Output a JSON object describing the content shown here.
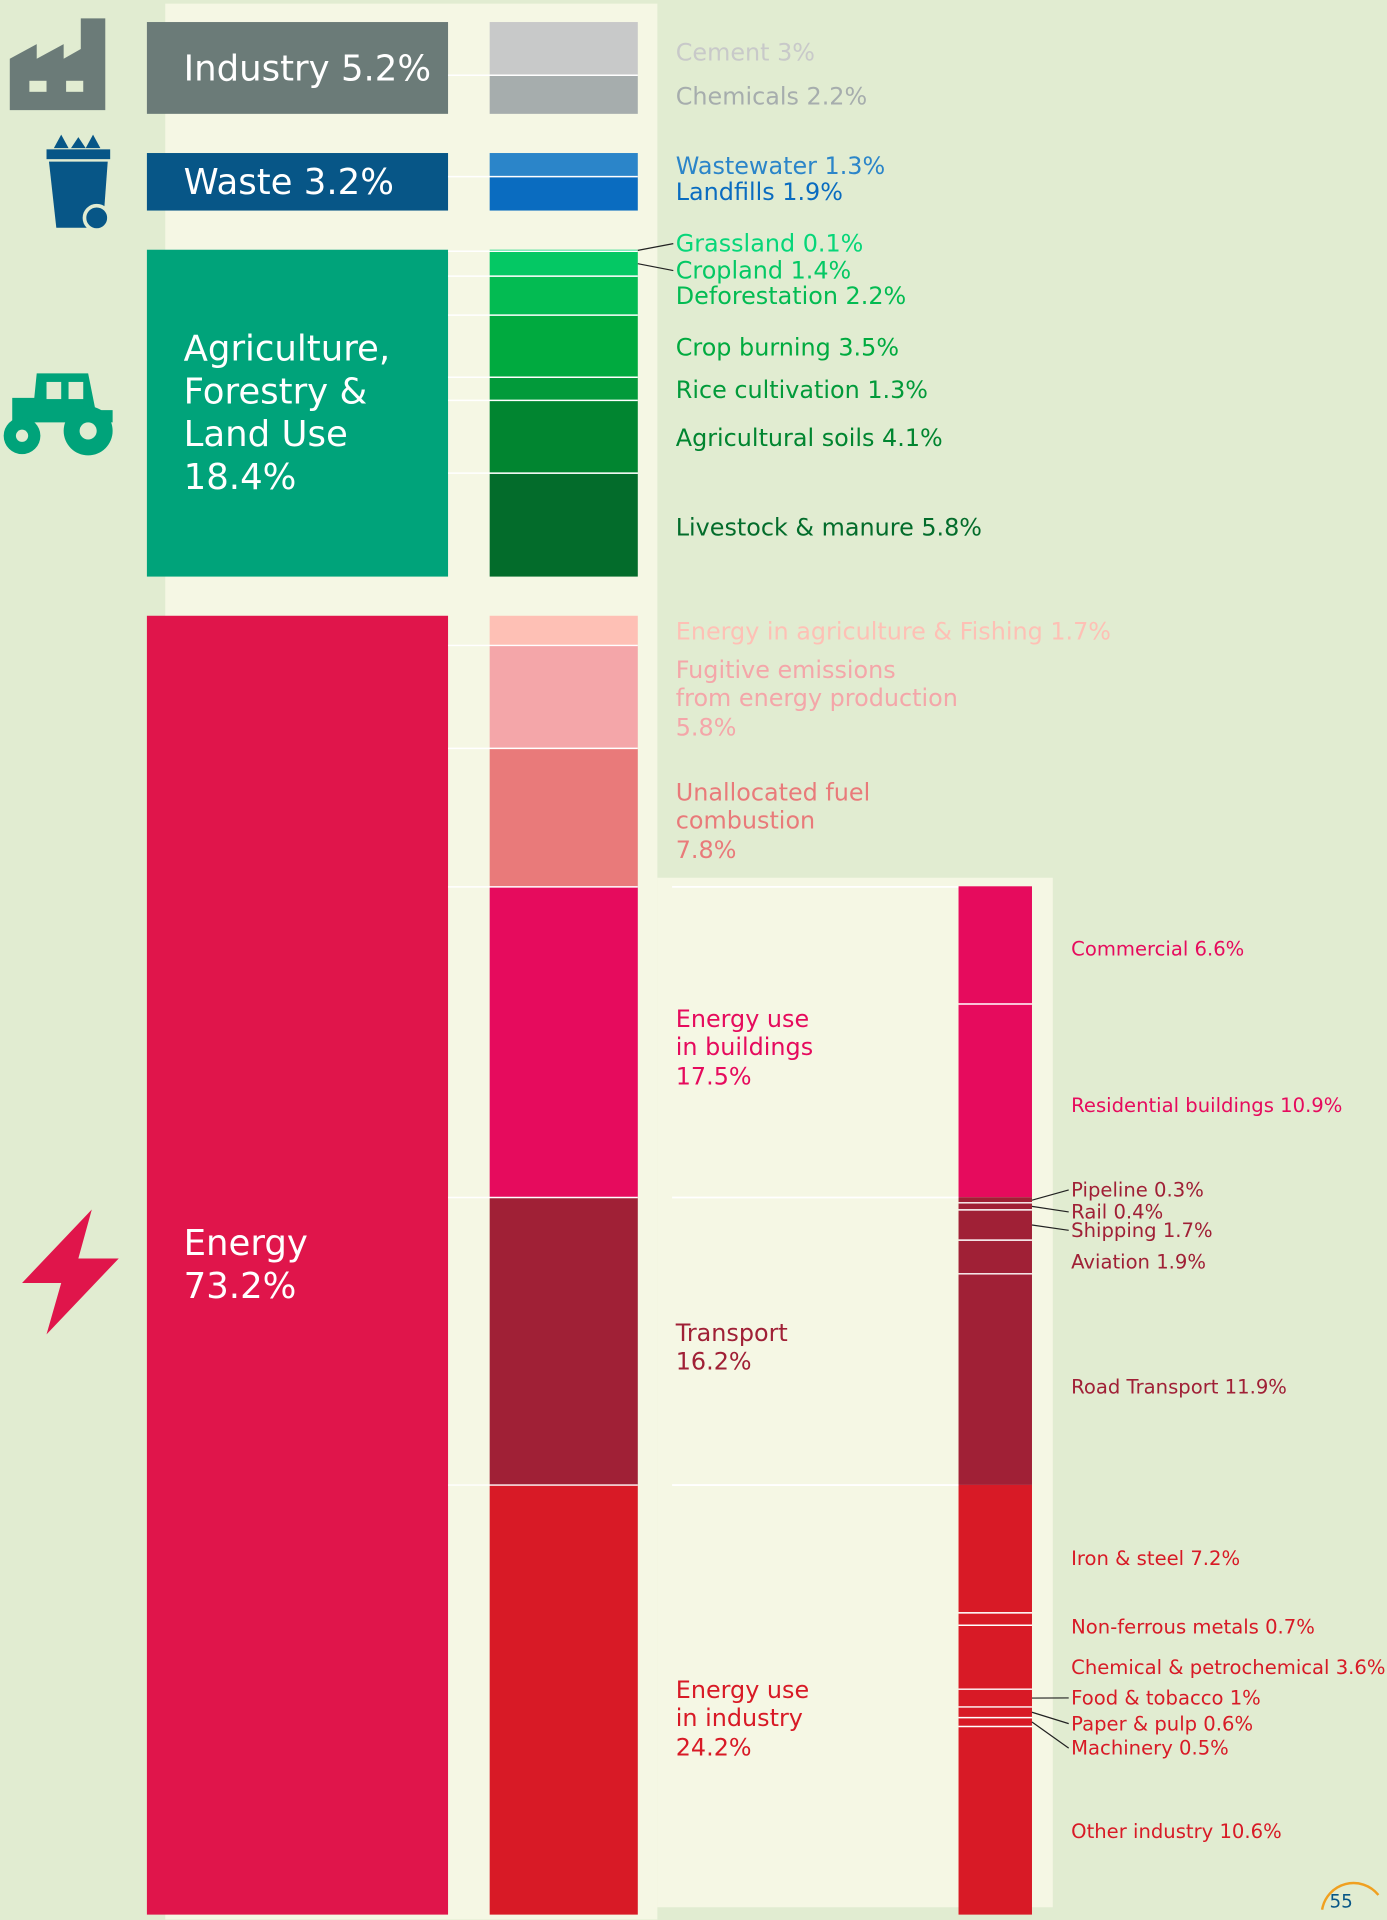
{
  "chart_data": {
    "type": "breakdown",
    "sectors": [
      {
        "label": "Industry 5.2%",
        "value": 5.2,
        "color": "#6b7b78",
        "parts": [
          {
            "label": "Cement 3%",
            "value": 3,
            "color": "#c8c9c9"
          },
          {
            "label": "Chemicals 2.2%",
            "value": 2.2,
            "color": "#a6adad"
          }
        ]
      },
      {
        "label": "Waste 3.2%",
        "value": 3.2,
        "color": "#075687",
        "parts": [
          {
            "label": "Wastewater 1.3%",
            "value": 1.3,
            "color": "#2b85c9"
          },
          {
            "label": "Landfills 1.9%",
            "value": 1.9,
            "color": "#0a6cc0"
          }
        ]
      },
      {
        "label": "Agriculture,\nForestry &\nLand Use\n18.4%",
        "value": 18.4,
        "color": "#00a37a",
        "parts": [
          {
            "label": "Grassland 0.1%",
            "value": 0.1,
            "color": "#07d679"
          },
          {
            "label": "Cropland 1.4%",
            "value": 1.4,
            "color": "#04c864"
          },
          {
            "label": "Deforestation 2.2%",
            "value": 2.2,
            "color": "#03bb52"
          },
          {
            "label": "Crop burning 3.5%",
            "value": 3.5,
            "color": "#00aa3f"
          },
          {
            "label": "Rice cultivation 1.3%",
            "value": 1.3,
            "color": "#029a3a"
          },
          {
            "label": "Agricultural soils 4.1%",
            "value": 4.1,
            "color": "#018530"
          },
          {
            "label": "Livestock & manure 5.8%",
            "value": 5.8,
            "color": "#036c2b"
          }
        ]
      },
      {
        "label": "Energy\n73.2%",
        "value": 73.2,
        "color": "#e0154b",
        "parts": [
          {
            "label": "Energy in agriculture & Fishing 1.7%",
            "value": 1.7,
            "color": "#fec0b5"
          },
          {
            "label": "Fugitive emissions\nfrom energy production\n5.8%",
            "value": 5.8,
            "color": "#f4a6a9"
          },
          {
            "label": "Unallocated fuel\ncombustion\n7.8%",
            "value": 7.8,
            "color": "#e97a7a"
          },
          {
            "label": "Energy use\nin buildings\n17.5%",
            "value": 17.5,
            "color": "#e60b5d",
            "parts": [
              {
                "label": "Commercial 6.6%",
                "value": 6.6
              },
              {
                "label": "Residential buildings 10.9%",
                "value": 10.9
              }
            ]
          },
          {
            "label": "Transport\n16.2%",
            "value": 16.2,
            "color": "#a02036",
            "parts": [
              {
                "label": "Pipeline 0.3%",
                "value": 0.3
              },
              {
                "label": "Rail 0.4%",
                "value": 0.4
              },
              {
                "label": "Shipping 1.7%",
                "value": 1.7
              },
              {
                "label": "Aviation 1.9%",
                "value": 1.9
              },
              {
                "label": "Road Transport 11.9%",
                "value": 11.9
              }
            ]
          },
          {
            "label": "Energy use\nin industry\n24.2%",
            "value": 24.2,
            "color": "#d81a26",
            "parts": [
              {
                "label": "Iron & steel 7.2%",
                "value": 7.2
              },
              {
                "label": "Non-ferrous metals 0.7%",
                "value": 0.7
              },
              {
                "label": "Chemical & petrochemical 3.6%",
                "value": 3.6
              },
              {
                "label": "Food & tobacco 1%",
                "value": 1
              },
              {
                "label": "Paper & pulp 0.6%",
                "value": 0.6
              },
              {
                "label": "Machinery 0.5%",
                "value": 0.5
              },
              {
                "label": "Other industry 10.6%",
                "value": 10.6
              }
            ]
          }
        ]
      }
    ]
  },
  "page_number": "55"
}
